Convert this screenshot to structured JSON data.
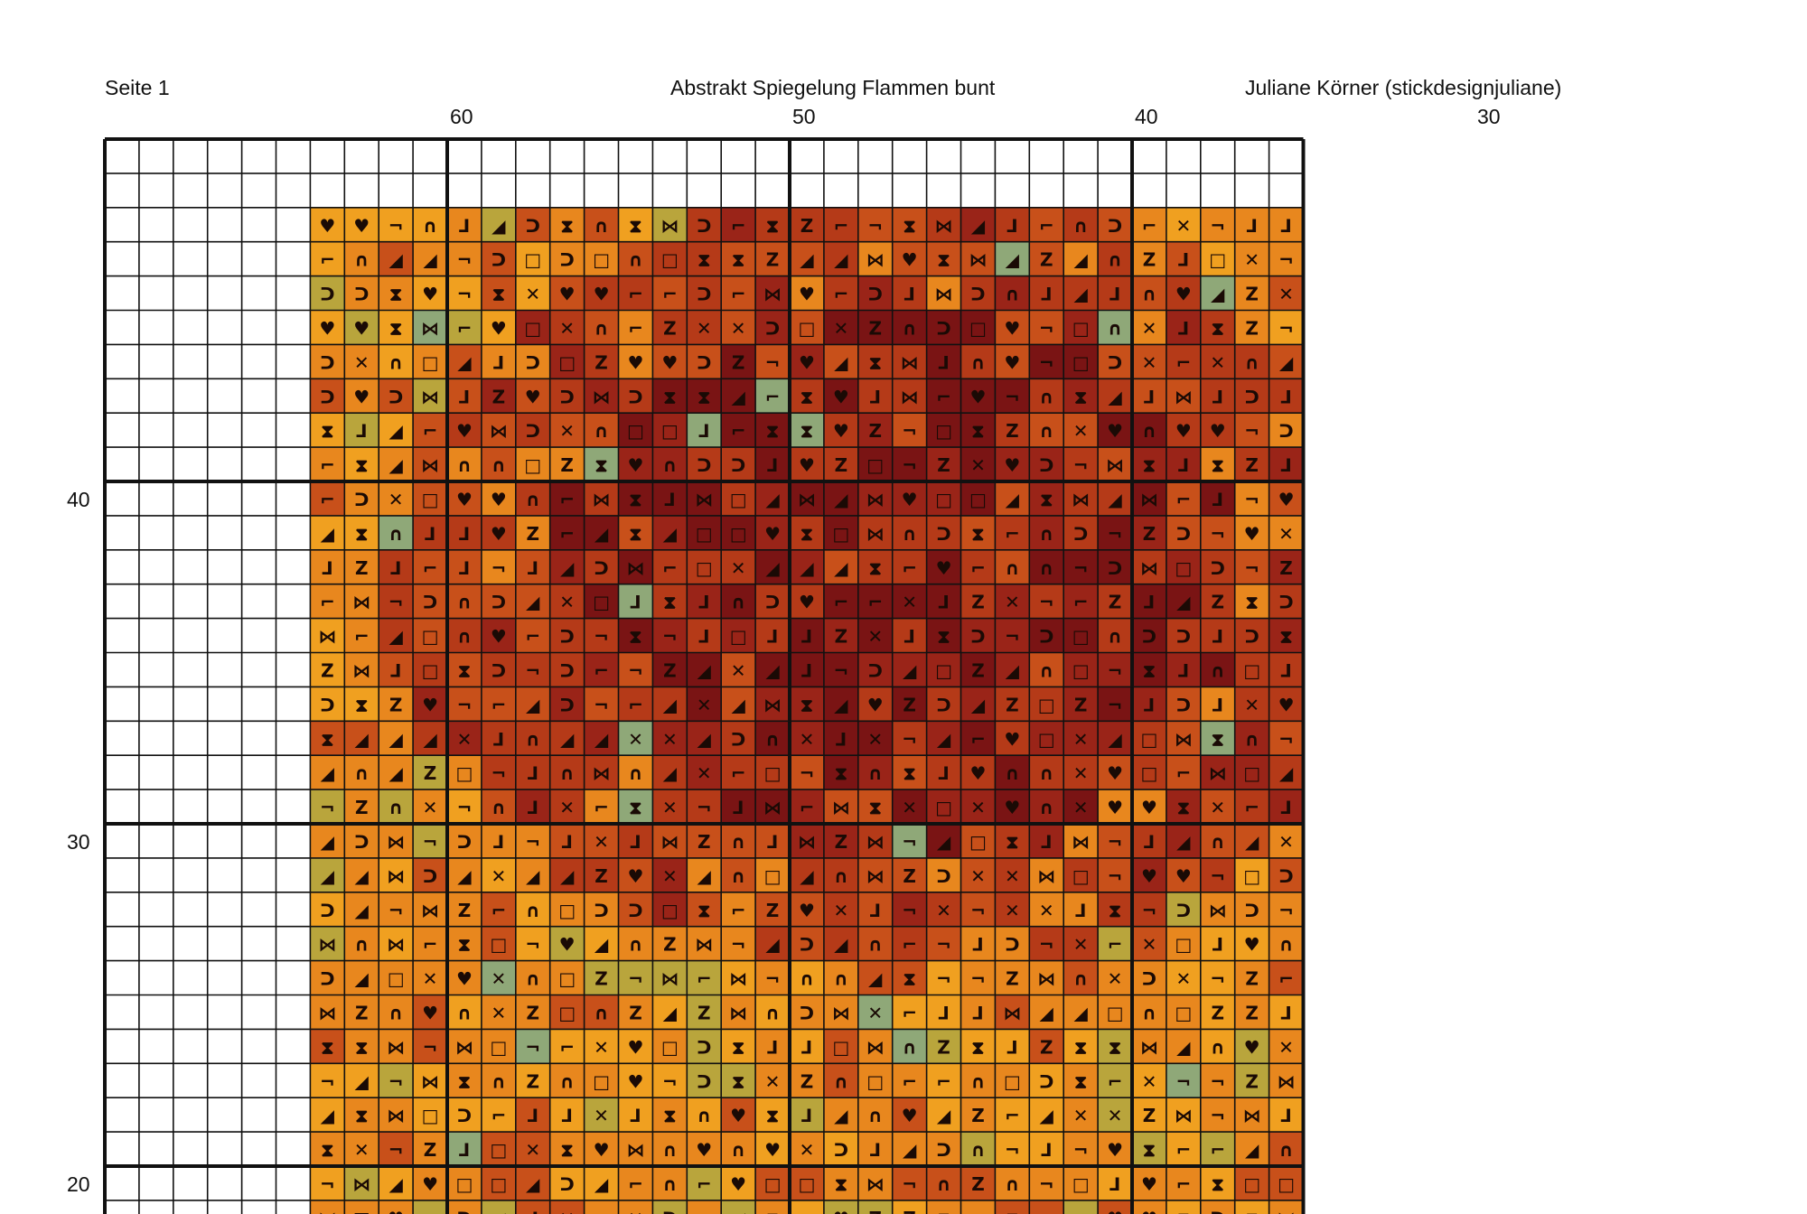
{
  "header": {
    "page_label": "Seite 1",
    "title": "Abstrakt Spiegelung Flammen bunt",
    "author": "Juliane Körner (stickdesignjuliane)"
  },
  "column_numbers": [
    "60",
    "50",
    "40",
    "30"
  ],
  "row_numbers": [
    "40",
    "30",
    "20"
  ],
  "palette": {
    "grid": "#111111",
    "orange": "#e8871e",
    "dark_orange": "#c8501a",
    "rust": "#b53a18",
    "red": "#9a2418",
    "dark_red": "#7a1414",
    "yellow_orange": "#f0a020",
    "olive": "#b9a53c",
    "sage": "#8fa878"
  },
  "symbol_legend": [
    "hourglass",
    "bracket",
    "corner",
    "cross",
    "bowtie",
    "heart",
    "arch",
    "triangle",
    "z-mark"
  ]
}
